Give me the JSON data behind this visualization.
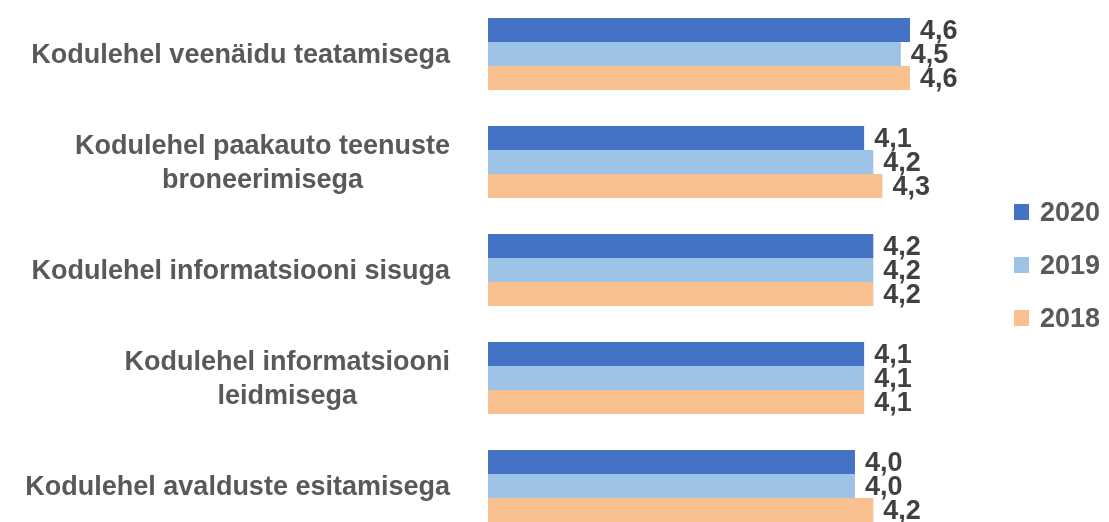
{
  "chart_data": {
    "type": "bar",
    "orientation": "horizontal",
    "categories": [
      "Kodulehel veenäidu teatamisega",
      "Kodulehel paakauto teenuste broneerimisega",
      "Kodulehel informatsiooni sisuga",
      "Kodulehel informatsiooni leidmisega",
      "Kodulehel avalduste esitamisega"
    ],
    "series": [
      {
        "name": "2020",
        "color": "#4472c4",
        "values": [
          4.6,
          4.1,
          4.2,
          4.1,
          4.0
        ],
        "value_labels": [
          "4,6",
          "4,1",
          "4,2",
          "4,1",
          "4,0"
        ]
      },
      {
        "name": "2019",
        "color": "#9dc3e6",
        "values": [
          4.5,
          4.2,
          4.2,
          4.1,
          4.0
        ],
        "value_labels": [
          "4,5",
          "4,2",
          "4,2",
          "4,1",
          "4,0"
        ]
      },
      {
        "name": "2018",
        "color": "#f9c18f",
        "values": [
          4.6,
          4.3,
          4.2,
          4.1,
          4.2
        ],
        "value_labels": [
          "4,6",
          "4,3",
          "4,2",
          "4,1",
          "4,2"
        ]
      }
    ],
    "legend": "right",
    "tick_labels": "y"
  }
}
